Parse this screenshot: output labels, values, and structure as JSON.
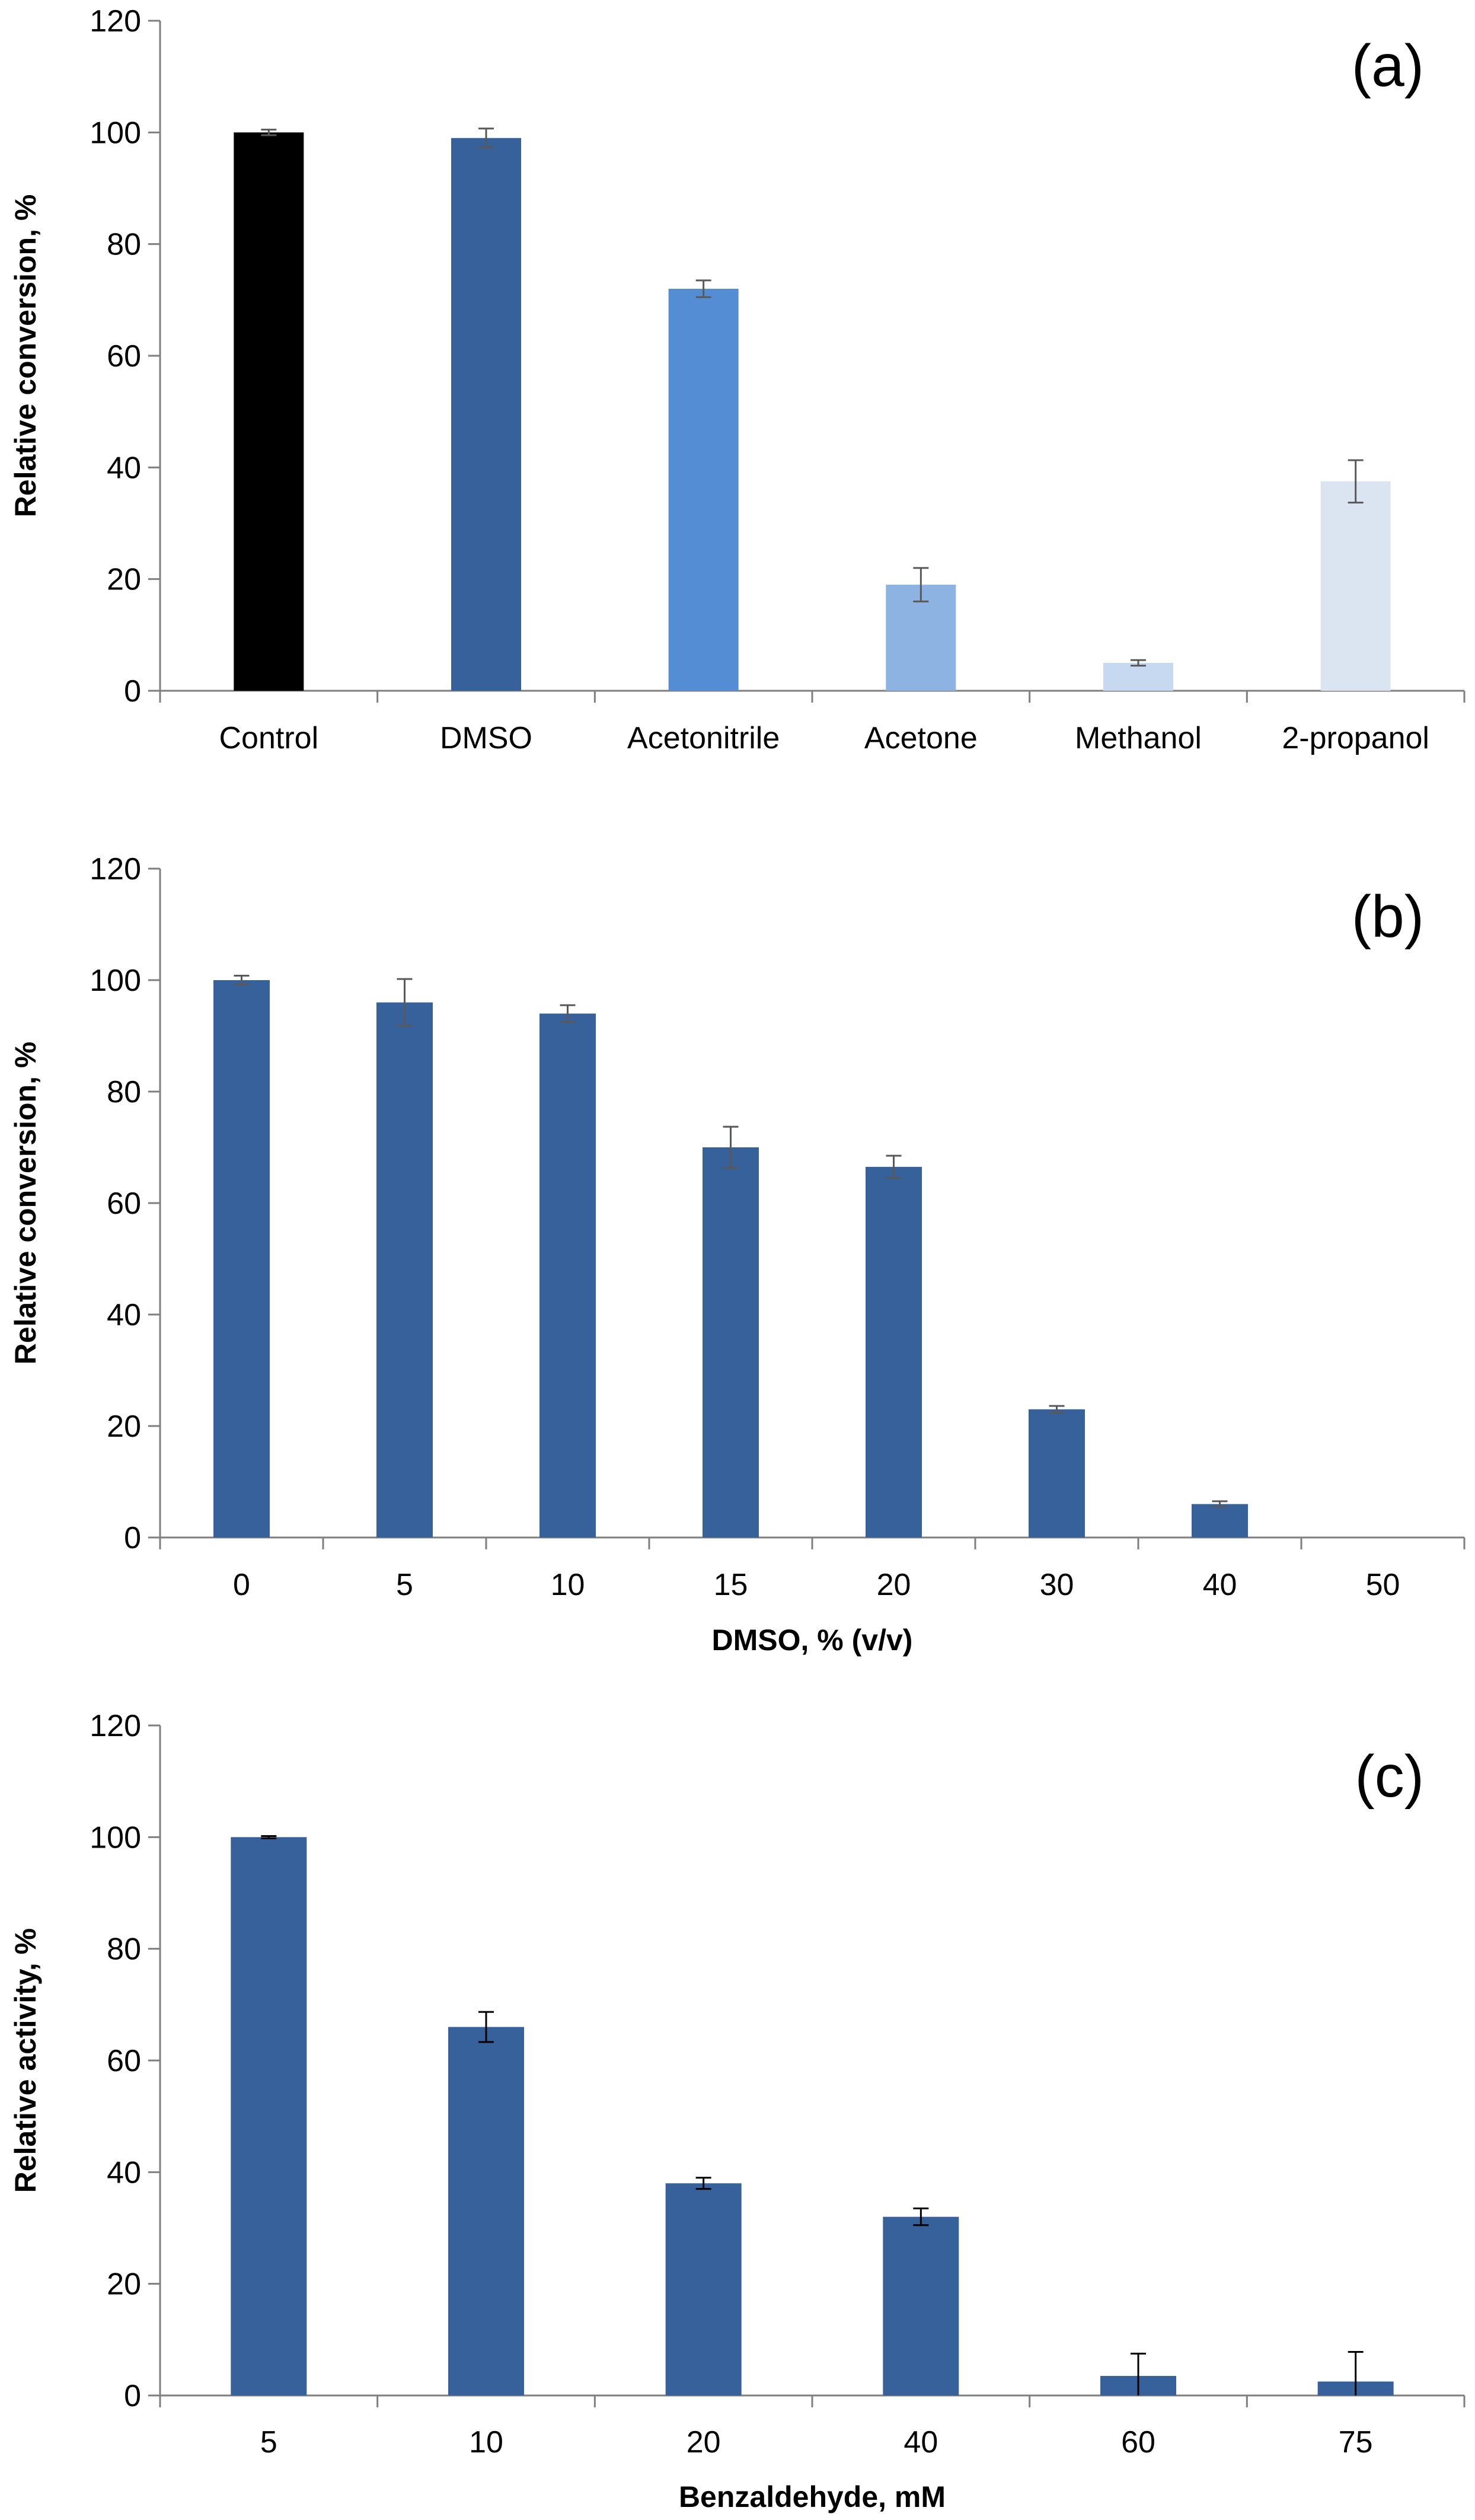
{
  "chart_data": [
    {
      "type": "bar",
      "panel_label": "(a)",
      "ylabel": "Relative conversion, %",
      "xlabel": "",
      "ylim": [
        0,
        120
      ],
      "yticks": [
        0,
        20,
        40,
        60,
        80,
        100,
        120
      ],
      "categories": [
        "Control",
        "DMSO",
        "Acetonitrile",
        "Acetone",
        "Methanol",
        "2-propanol"
      ],
      "values": [
        100,
        99,
        72,
        19,
        5,
        37.5
      ],
      "errors": [
        0.5,
        1.7,
        1.5,
        3,
        0.5,
        3.8
      ],
      "colors": [
        "#000000",
        "#36619a",
        "#548dd4",
        "#8db3e2",
        "#c6d9f1",
        "#dbe5f1"
      ],
      "grid": false
    },
    {
      "type": "bar",
      "panel_label": "(b)",
      "ylabel": "Relative conversion, %",
      "xlabel": "DMSO, % (v/v)",
      "ylim": [
        0,
        120
      ],
      "yticks": [
        0,
        20,
        40,
        60,
        80,
        100,
        120
      ],
      "categories": [
        "0",
        "5",
        "10",
        "15",
        "20",
        "30",
        "40",
        "50"
      ],
      "values": [
        100,
        96,
        94,
        70,
        66.5,
        23,
        6,
        0
      ],
      "errors": [
        0.8,
        4.2,
        1.5,
        3.7,
        2,
        0.6,
        0.5,
        0
      ],
      "colors": [
        "#36619a",
        "#36619a",
        "#36619a",
        "#36619a",
        "#36619a",
        "#36619a",
        "#36619a",
        "#36619a"
      ],
      "grid": false
    },
    {
      "type": "bar",
      "panel_label": "(c)",
      "ylabel": "Relative activity, %",
      "xlabel": "Benzaldehyde, mM",
      "ylim": [
        0,
        120
      ],
      "yticks": [
        0,
        20,
        40,
        60,
        80,
        100,
        120
      ],
      "categories": [
        "5",
        "10",
        "20",
        "40",
        "60",
        "75"
      ],
      "values": [
        100,
        66,
        38,
        32,
        3.5,
        2.5
      ],
      "errors": [
        0.2,
        2.7,
        1,
        1.5,
        4,
        5.3
      ],
      "colors": [
        "#36619a",
        "#36619a",
        "#36619a",
        "#36619a",
        "#36619a",
        "#36619a"
      ],
      "grid": false
    }
  ]
}
